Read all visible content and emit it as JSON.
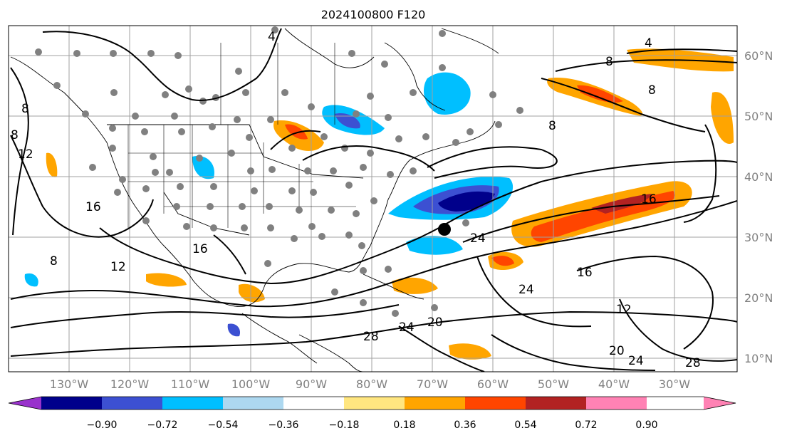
{
  "title": "2024100800 F120",
  "lon_labels": [
    "130°W",
    "120°W",
    "110°W",
    "100°W",
    "90°W",
    "80°W",
    "70°W",
    "60°W",
    "50°W",
    "40°W",
    "30°W"
  ],
  "lat_labels": [
    "60°N",
    "50°N",
    "40°N",
    "30°N",
    "20°N",
    "10°N"
  ],
  "colorbar": {
    "ticks": [
      "−0.90",
      "−0.72",
      "−0.54",
      "−0.36",
      "−0.18",
      "0.18",
      "0.36",
      "0.54",
      "0.72",
      "0.90"
    ],
    "colors": [
      "#9932cc",
      "#00008b",
      "#3c50d2",
      "#00bfff",
      "#add8f0",
      "#ffffff",
      "#ffe680",
      "#ffa500",
      "#ff4500",
      "#b22222",
      "#ff82b4"
    ]
  },
  "contour_labels": [
    "4",
    "8",
    "8",
    "12",
    "16",
    "4",
    "8",
    "8",
    "8",
    "16",
    "24",
    "8",
    "12",
    "16",
    "20",
    "24",
    "28",
    "16",
    "24",
    "12",
    "20",
    "24",
    "28"
  ],
  "storm_marker": "tropical-cyclone-center",
  "station_marker_color": "#808080"
}
